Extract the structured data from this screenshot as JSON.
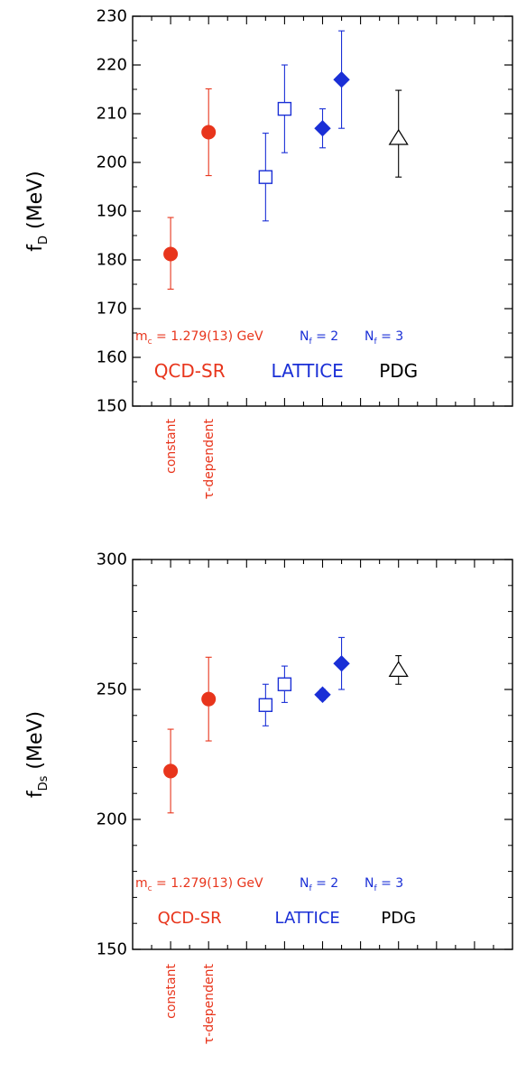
{
  "colors": {
    "red": "#e8351c",
    "blue": "#1a2fd6",
    "black": "#000000"
  },
  "chart_data": [
    {
      "type": "scatter",
      "ylabel_main": "f",
      "ylabel_sub": "D",
      "ylabel_unit": "(MeV)",
      "ylim": [
        150,
        230
      ],
      "yticks": [
        150,
        160,
        170,
        180,
        190,
        200,
        210,
        220,
        230
      ],
      "xlim": [
        0,
        10
      ],
      "grid": false,
      "points": [
        {
          "x": 1.0,
          "y": 181.2,
          "lo": 174.0,
          "hi": 188.7,
          "marker": "circle",
          "color": "red",
          "filled": true
        },
        {
          "x": 2.0,
          "y": 206.2,
          "lo": 197.3,
          "hi": 215.1,
          "marker": "circle",
          "color": "red",
          "filled": true
        },
        {
          "x": 3.5,
          "y": 197.0,
          "lo": 188.0,
          "hi": 206.0,
          "marker": "square",
          "color": "blue",
          "filled": false
        },
        {
          "x": 4.0,
          "y": 211.0,
          "lo": 202.0,
          "hi": 220.0,
          "marker": "square",
          "color": "blue",
          "filled": false
        },
        {
          "x": 5.0,
          "y": 207.0,
          "lo": 203.0,
          "hi": 211.0,
          "marker": "diamond",
          "color": "blue",
          "filled": true
        },
        {
          "x": 5.5,
          "y": 217.0,
          "lo": 207.0,
          "hi": 227.0,
          "marker": "diamond",
          "color": "blue",
          "filled": true
        },
        {
          "x": 7.0,
          "y": 205.0,
          "lo": 197.0,
          "hi": 214.8,
          "marker": "triangle",
          "color": "black",
          "filled": false
        }
      ],
      "annotations": {
        "mc_m": "m",
        "mc_sub": "c",
        "mc_rest": " = 1.279(13) GeV",
        "nf_n": "N",
        "nf_sub": "f",
        "nf2_rest": " = 2",
        "nf3_rest": " = 3",
        "qcd": "QCD-SR",
        "lattice": "LATTICE",
        "pdg": "PDG"
      },
      "category_labels": [
        "constant",
        "τ-dependent"
      ]
    },
    {
      "type": "scatter",
      "ylabel_main": "f",
      "ylabel_sub": "Ds",
      "ylabel_unit": "(MeV)",
      "ylim": [
        150,
        300
      ],
      "yticks": [
        150,
        200,
        250,
        300
      ],
      "xlim": [
        0,
        10
      ],
      "grid": false,
      "points": [
        {
          "x": 1.0,
          "y": 218.6,
          "lo": 202.5,
          "hi": 234.7,
          "marker": "circle",
          "color": "red",
          "filled": true
        },
        {
          "x": 2.0,
          "y": 246.3,
          "lo": 230.2,
          "hi": 262.4,
          "marker": "circle",
          "color": "red",
          "filled": true
        },
        {
          "x": 3.5,
          "y": 244.0,
          "lo": 236.0,
          "hi": 252.0,
          "marker": "square",
          "color": "blue",
          "filled": false
        },
        {
          "x": 4.0,
          "y": 252.0,
          "lo": 245.0,
          "hi": 259.0,
          "marker": "square",
          "color": "blue",
          "filled": false
        },
        {
          "x": 5.0,
          "y": 248.0,
          "lo": 246.0,
          "hi": 250.0,
          "marker": "diamond",
          "color": "blue",
          "filled": true
        },
        {
          "x": 5.5,
          "y": 260.0,
          "lo": 250.0,
          "hi": 270.0,
          "marker": "diamond",
          "color": "blue",
          "filled": true
        },
        {
          "x": 7.0,
          "y": 257.5,
          "lo": 252.0,
          "hi": 263.0,
          "marker": "triangle",
          "color": "black",
          "filled": false
        }
      ],
      "annotations": {
        "mc_m": "m",
        "mc_sub": "c",
        "mc_rest": " = 1.279(13) GeV",
        "nf_n": "N",
        "nf_sub": "f",
        "nf2_rest": " = 2",
        "nf3_rest": " = 3",
        "qcd": "QCD-SR",
        "lattice": "LATTICE",
        "pdg": "PDG"
      },
      "category_labels": [
        "constant",
        "τ-dependent"
      ]
    }
  ]
}
